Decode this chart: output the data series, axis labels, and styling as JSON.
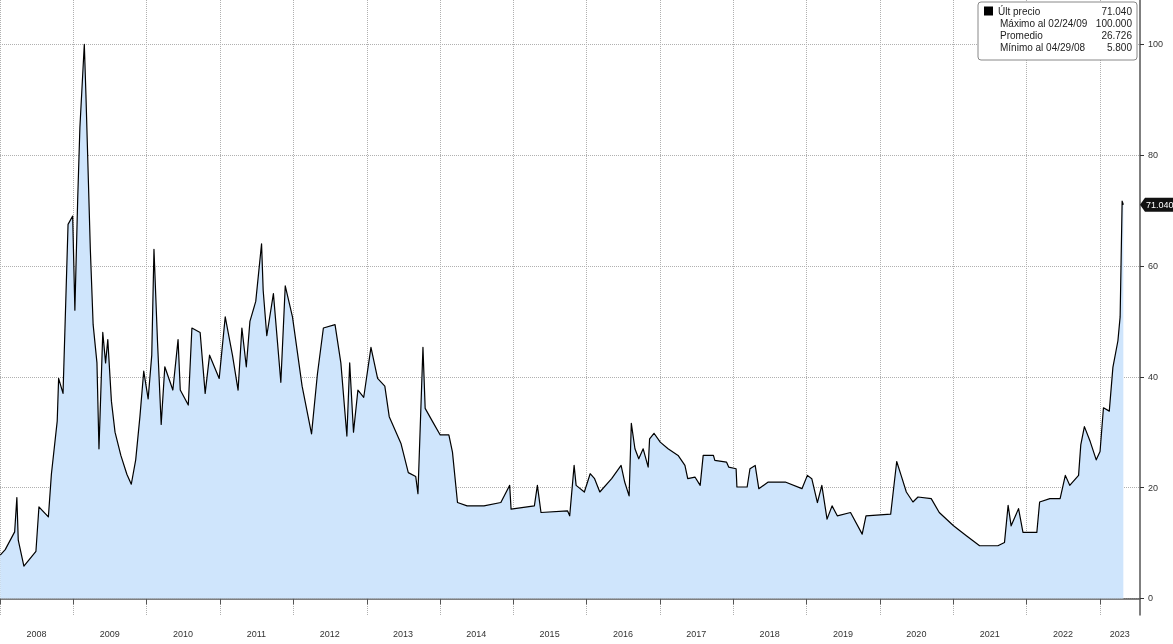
{
  "chart_data": {
    "type": "area",
    "series": [
      {
        "name": "Últ precio",
        "color": "#000000",
        "x": [
          "2008-01-02",
          "2008-01-27",
          "2008-03-14",
          "2008-03-25",
          "2008-04-01",
          "2008-04-29",
          "2008-06-28",
          "2008-07-13",
          "2008-08-29",
          "2008-09-13",
          "2008-10-12",
          "2008-10-19",
          "2008-11-10",
          "2008-12-05",
          "2008-12-28",
          "2009-01-08",
          "2009-01-22",
          "2009-02-02",
          "2009-02-24",
          "2009-03-04",
          "2009-03-26",
          "2009-04-09",
          "2009-04-28",
          "2009-05-08",
          "2009-05-27",
          "2009-06-10",
          "2009-06-21",
          "2009-07-09",
          "2009-07-27",
          "2009-08-25",
          "2009-09-24",
          "2009-10-16",
          "2009-11-07",
          "2009-11-28",
          "2009-12-17",
          "2010-01-08",
          "2010-01-26",
          "2010-02-06",
          "2010-02-24",
          "2010-03-14",
          "2010-04-01",
          "2010-05-11",
          "2010-06-06",
          "2010-06-17",
          "2010-07-27",
          "2010-08-14",
          "2010-09-24",
          "2010-10-19",
          "2010-11-10",
          "2010-12-28",
          "2011-01-27",
          "2011-03-04",
          "2011-04-01",
          "2011-04-20",
          "2011-05-12",
          "2011-05-30",
          "2011-06-28",
          "2011-07-27",
          "2011-08-04",
          "2011-08-22",
          "2011-09-24",
          "2011-10-31",
          "2011-11-22",
          "2011-12-28",
          "2012-02-14",
          "2012-04-01",
          "2012-04-30",
          "2012-05-30",
          "2012-07-27",
          "2012-08-25",
          "2012-09-24",
          "2012-10-08",
          "2012-10-27",
          "2012-11-18",
          "2012-12-17",
          "2013-01-22",
          "2013-02-24",
          "2013-04-01",
          "2013-04-23",
          "2013-06-21",
          "2013-07-27",
          "2013-09-02",
          "2013-09-13",
          "2013-10-08",
          "2013-10-19",
          "2013-11-25",
          "2014-01-02",
          "2014-02-14",
          "2014-03-04",
          "2014-03-29",
          "2014-05-16",
          "2014-08-08",
          "2014-10-31",
          "2014-12-14",
          "2014-12-21",
          "2015-04-16",
          "2015-05-01",
          "2015-05-19",
          "2015-09-28",
          "2015-10-09",
          "2015-10-31",
          "2015-11-10",
          "2015-12-21",
          "2016-01-19",
          "2016-02-10",
          "2016-03-07",
          "2016-05-05",
          "2016-06-21",
          "2016-07-09",
          "2016-07-31",
          "2016-08-11",
          "2016-08-29",
          "2016-09-17",
          "2016-10-09",
          "2016-11-03",
          "2016-11-10",
          "2016-12-02",
          "2017-01-02",
          "2017-02-10",
          "2017-04-01",
          "2017-05-05",
          "2017-05-19",
          "2017-06-24",
          "2017-07-20",
          "2017-08-04",
          "2017-09-24",
          "2017-10-01",
          "2017-11-28",
          "2017-12-09",
          "2018-01-15",
          "2018-01-19",
          "2018-03-11",
          "2018-03-25",
          "2018-04-20",
          "2018-05-08",
          "2018-06-24",
          "2018-09-17",
          "2018-12-09",
          "2019-01-05",
          "2019-01-27",
          "2019-02-24",
          "2019-03-18",
          "2019-04-13",
          "2019-05-08",
          "2019-06-03",
          "2019-08-08",
          "2019-10-05",
          "2019-10-24",
          "2020-02-24",
          "2020-03-25",
          "2020-04-16",
          "2020-05-12",
          "2020-06-14",
          "2020-07-09",
          "2020-09-13",
          "2020-10-23",
          "2021-01-02",
          "2021-03-07",
          "2021-05-12",
          "2021-08-11",
          "2021-09-13",
          "2021-10-01",
          "2021-10-16",
          "2021-11-22",
          "2021-12-14",
          "2022-02-21",
          "2022-03-07",
          "2022-04-27",
          "2022-06-17",
          "2022-07-13",
          "2022-08-04",
          "2022-09-17",
          "2022-09-28",
          "2022-10-16",
          "2022-11-14",
          "2022-12-14",
          "2023-01-02",
          "2023-01-19",
          "2023-02-17",
          "2023-03-07",
          "2023-04-01",
          "2023-04-12",
          "2023-04-22",
          "2023-04-28"
        ],
        "values": [
          7.8,
          8.8,
          12,
          18.2,
          10.5,
          5.8,
          8.5,
          16.5,
          14.7,
          22.4,
          32,
          39.7,
          37,
          67.5,
          69,
          52,
          72,
          85,
          100,
          91,
          63,
          49.4,
          42.5,
          27,
          48,
          42.5,
          46.7,
          35.6,
          30,
          25.8,
          22.4,
          20.6,
          25,
          32.8,
          41,
          36,
          43.9,
          63,
          46,
          31.4,
          41.8,
          37.6,
          46.7,
          37.6,
          34.9,
          48.8,
          48,
          37,
          43.9,
          39.7,
          50.8,
          43.9,
          37.6,
          48.8,
          41.8,
          50,
          53.6,
          64,
          55.6,
          47.4,
          55,
          39,
          56.4,
          50.8,
          38.3,
          29.7,
          40.4,
          48.8,
          49.4,
          42.5,
          29.3,
          42.5,
          30,
          37.6,
          36.3,
          45.3,
          39.7,
          38.3,
          32.8,
          27.9,
          22.7,
          22,
          18.9,
          45.3,
          34.3,
          31.9,
          29.5,
          29.5,
          26.4,
          17.3,
          16.7,
          16.7,
          17.3,
          20.4,
          16.1,
          16.7,
          20.4,
          15.5,
          15.8,
          14.9,
          24,
          20.4,
          19.2,
          22.5,
          21.6,
          19.2,
          21.6,
          24,
          21,
          18.5,
          31.6,
          27,
          25.2,
          27,
          23.7,
          28.8,
          29.8,
          28.2,
          27,
          25.8,
          24,
          21.6,
          21.9,
          20.4,
          25.8,
          25.8,
          24.9,
          24.6,
          23.7,
          23.4,
          20.1,
          20.1,
          23.4,
          24,
          19.8,
          21,
          21,
          19.8,
          22.2,
          21.6,
          17.3,
          20.4,
          14.3,
          16.7,
          14.9,
          15.5,
          11.6,
          14.9,
          15.2,
          24.7,
          22.2,
          19.2,
          17.4,
          18.3,
          18,
          15.5,
          13.1,
          11.3,
          9.5,
          9.5,
          10.1,
          16.8,
          13.1,
          16.2,
          11.9,
          11.9,
          17.4,
          18,
          18,
          22.2,
          20.4,
          22.2,
          27.7,
          31,
          28.3,
          25,
          26.5,
          34.4,
          33.8,
          41.7,
          46.5,
          50.8,
          71.7,
          71.04
        ]
      }
    ],
    "xlim": [
      "2008-01-01",
      "2023-07-20"
    ],
    "xticks": [
      {
        "value": "2008-01-01",
        "label": null
      },
      {
        "value": "2008-07-01",
        "label": "2008"
      },
      {
        "value": "2009-01-01",
        "label": null
      },
      {
        "value": "2009-07-01",
        "label": "2009"
      },
      {
        "value": "2010-01-01",
        "label": null
      },
      {
        "value": "2010-07-01",
        "label": "2010"
      },
      {
        "value": "2011-01-01",
        "label": null
      },
      {
        "value": "2011-07-01",
        "label": "2011"
      },
      {
        "value": "2012-01-01",
        "label": null
      },
      {
        "value": "2012-07-01",
        "label": "2012"
      },
      {
        "value": "2013-01-01",
        "label": null
      },
      {
        "value": "2013-07-01",
        "label": "2013"
      },
      {
        "value": "2014-01-01",
        "label": null
      },
      {
        "value": "2014-07-01",
        "label": "2014"
      },
      {
        "value": "2015-01-01",
        "label": null
      },
      {
        "value": "2015-07-01",
        "label": "2015"
      },
      {
        "value": "2016-01-01",
        "label": null
      },
      {
        "value": "2016-07-01",
        "label": "2016"
      },
      {
        "value": "2017-01-01",
        "label": null
      },
      {
        "value": "2017-07-01",
        "label": "2017"
      },
      {
        "value": "2018-01-01",
        "label": null
      },
      {
        "value": "2018-07-01",
        "label": "2018"
      },
      {
        "value": "2019-01-01",
        "label": null
      },
      {
        "value": "2019-07-01",
        "label": "2019"
      },
      {
        "value": "2020-01-01",
        "label": null
      },
      {
        "value": "2020-07-01",
        "label": "2020"
      },
      {
        "value": "2021-01-01",
        "label": null
      },
      {
        "value": "2021-07-01",
        "label": "2021"
      },
      {
        "value": "2022-01-01",
        "label": null
      },
      {
        "value": "2022-07-01",
        "label": "2022"
      },
      {
        "value": "2023-01-01",
        "label": null
      },
      {
        "value": "2023-04-10",
        "label": "2023"
      }
    ],
    "ylim": [
      -3,
      108
    ],
    "yticks": [
      0,
      20,
      40,
      60,
      80,
      100
    ],
    "grid": true,
    "legend": "top right",
    "annotations": [
      {
        "text": "71.040",
        "x": "2023-04-28",
        "y": 71.04
      },
      "Máximo al 02/24/09 100.000",
      "Promedio 26.726",
      "Mínimo al 04/29/08 5.800"
    ]
  }
}
